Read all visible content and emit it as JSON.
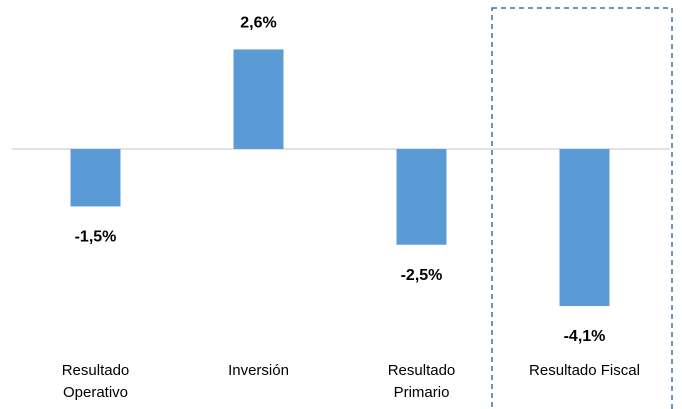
{
  "chart_data": {
    "type": "bar",
    "categories": [
      "Resultado Operativo",
      "Inversión",
      "Resultado Primario",
      "Resultado Fiscal"
    ],
    "values": [
      -1.5,
      2.6,
      -2.5,
      -4.1
    ],
    "value_labels": [
      "-1,5%",
      "2,6%",
      "-2,5%",
      "-4,1%"
    ],
    "color": "#5b9bd5"
  }
}
